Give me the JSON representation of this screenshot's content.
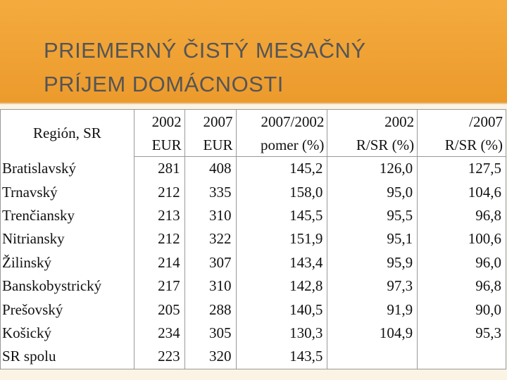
{
  "header": {
    "title": [
      "PRIEMERNÝ ČISTÝ MESAČNÝ",
      "PRÍJEM DOMÁCNOSTI"
    ]
  },
  "table": {
    "columns": [
      [
        "Región, SR"
      ],
      [
        "2002",
        "EUR"
      ],
      [
        "2007",
        "EUR"
      ],
      [
        "2007/2002",
        "pomer (%)"
      ],
      [
        "2002",
        "R/SR (%)"
      ],
      [
        "/2007",
        "R/SR (%)"
      ]
    ],
    "rows": [
      [
        "Bratislavský",
        "281",
        "408",
        "145,2",
        "126,0",
        "127,5"
      ],
      [
        "Trnavský",
        "212",
        "335",
        "158,0",
        "95,0",
        "104,6"
      ],
      [
        "Trenčiansky",
        "213",
        "310",
        "145,5",
        "95,5",
        "96,8"
      ],
      [
        "Nitriansky",
        "212",
        "322",
        "151,9",
        "95,1",
        "100,6"
      ],
      [
        "Žilinský",
        "214",
        "307",
        "143,4",
        "95,9",
        "96,0"
      ],
      [
        "Banskobystrický",
        "217",
        "310",
        "142,8",
        "97,3",
        "96,8"
      ],
      [
        "Prešovský",
        "205",
        "288",
        "140,5",
        "91,9",
        "90,0"
      ],
      [
        "Košický",
        "234",
        "305",
        "130,3",
        "104,9",
        "95,3"
      ],
      [
        "SR spolu",
        "223",
        "320",
        "143,5"
      ]
    ]
  }
}
